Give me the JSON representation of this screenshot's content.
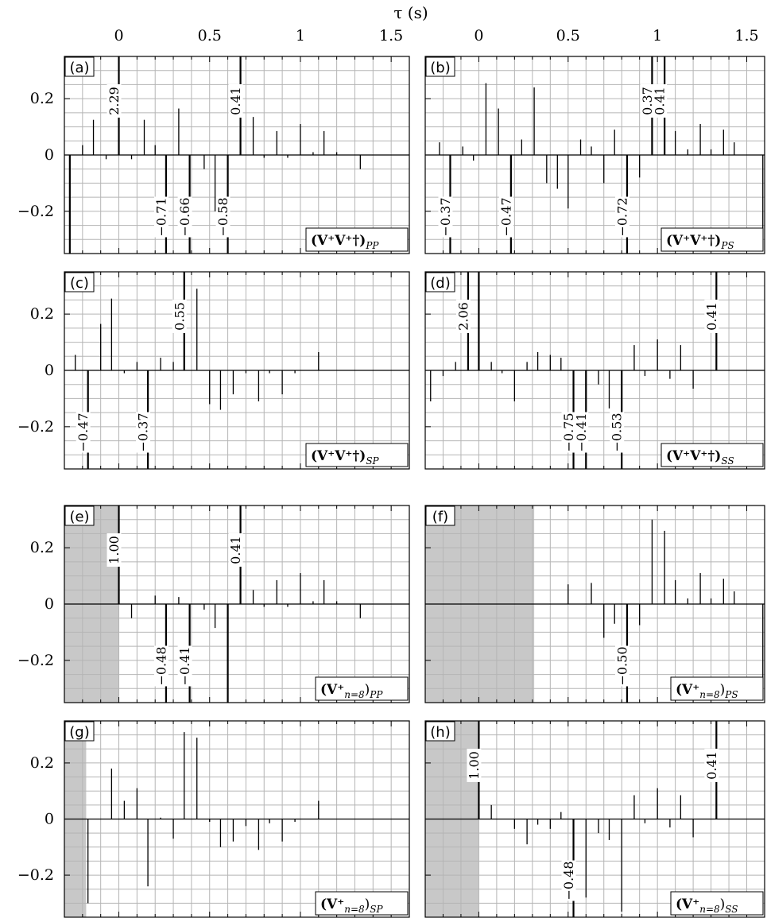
{
  "figure": {
    "xlabel_html": "τ (s)"
  },
  "chart_data": [
    {
      "panel": "(a)",
      "title_main": "(V⁺V⁺†)",
      "title_sub": "PP",
      "type": "bar",
      "xlim": [
        -0.3,
        1.6
      ],
      "ylim": [
        -0.35,
        0.35
      ],
      "xticks": [
        0,
        0.5,
        1,
        1.5
      ],
      "yticks": [
        0.2,
        0,
        -0.2
      ],
      "shade": null,
      "spikes": [
        {
          "x": -0.27,
          "y": -0.35
        },
        {
          "x": -0.2,
          "y": 0.035
        },
        {
          "x": -0.14,
          "y": 0.125
        },
        {
          "x": -0.07,
          "y": -0.015
        },
        {
          "x": 0.0,
          "y": 0.35
        },
        {
          "x": 0.07,
          "y": -0.015
        },
        {
          "x": 0.14,
          "y": 0.125
        },
        {
          "x": 0.2,
          "y": 0.035
        },
        {
          "x": 0.26,
          "y": -0.35
        },
        {
          "x": 0.33,
          "y": 0.165
        },
        {
          "x": 0.39,
          "y": -0.35
        },
        {
          "x": 0.47,
          "y": -0.05
        },
        {
          "x": 0.53,
          "y": -0.2
        },
        {
          "x": 0.6,
          "y": -0.35
        },
        {
          "x": 0.67,
          "y": 0.35
        },
        {
          "x": 0.74,
          "y": 0.135
        },
        {
          "x": 0.8,
          "y": -0.01
        },
        {
          "x": 0.87,
          "y": 0.085
        },
        {
          "x": 0.93,
          "y": -0.01
        },
        {
          "x": 1.0,
          "y": 0.11
        },
        {
          "x": 1.07,
          "y": 0.01
        },
        {
          "x": 1.13,
          "y": 0.085
        },
        {
          "x": 1.2,
          "y": 0.01
        },
        {
          "x": 1.33,
          "y": -0.05
        }
      ],
      "annotations": [
        {
          "text": "2.29",
          "x": 0.0,
          "y": 0.35
        },
        {
          "text": "0.41",
          "x": 0.67,
          "y": 0.35
        },
        {
          "text": "−0.71",
          "x": 0.26,
          "y": -0.35
        },
        {
          "text": "−0.66",
          "x": 0.39,
          "y": -0.35
        },
        {
          "text": "−0.58",
          "x": 0.6,
          "y": -0.35
        }
      ]
    },
    {
      "panel": "(b)",
      "title_main": "(V⁺V⁺†)",
      "title_sub": "PS",
      "type": "bar",
      "xlim": [
        -0.3,
        1.6
      ],
      "ylim": [
        -0.35,
        0.35
      ],
      "xticks": [
        0,
        0.5,
        1,
        1.5
      ],
      "yticks": [
        0.2,
        0,
        -0.2
      ],
      "shade": null,
      "spikes": [
        {
          "x": -0.22,
          "y": 0.045
        },
        {
          "x": -0.16,
          "y": -0.35
        },
        {
          "x": -0.09,
          "y": 0.03
        },
        {
          "x": -0.03,
          "y": -0.02
        },
        {
          "x": 0.04,
          "y": 0.255
        },
        {
          "x": 0.11,
          "y": 0.165
        },
        {
          "x": 0.18,
          "y": -0.35
        },
        {
          "x": 0.24,
          "y": 0.055
        },
        {
          "x": 0.31,
          "y": 0.24
        },
        {
          "x": 0.38,
          "y": -0.1
        },
        {
          "x": 0.44,
          "y": -0.12
        },
        {
          "x": 0.5,
          "y": -0.19
        },
        {
          "x": 0.57,
          "y": 0.055
        },
        {
          "x": 0.63,
          "y": 0.03
        },
        {
          "x": 0.7,
          "y": -0.1
        },
        {
          "x": 0.76,
          "y": 0.09
        },
        {
          "x": 0.83,
          "y": -0.35
        },
        {
          "x": 0.9,
          "y": -0.08
        },
        {
          "x": 0.97,
          "y": 0.35
        },
        {
          "x": 1.04,
          "y": 0.35
        },
        {
          "x": 1.1,
          "y": 0.085
        },
        {
          "x": 1.17,
          "y": 0.02
        },
        {
          "x": 1.24,
          "y": 0.11
        },
        {
          "x": 1.3,
          "y": 0.02
        },
        {
          "x": 1.37,
          "y": 0.09
        },
        {
          "x": 1.43,
          "y": 0.045
        },
        {
          "x": 1.59,
          "y": -0.3
        }
      ],
      "annotations": [
        {
          "text": "−0.37",
          "x": -0.16,
          "y": -0.35
        },
        {
          "text": "−0.47",
          "x": 0.18,
          "y": -0.35
        },
        {
          "text": "−0.72",
          "x": 0.83,
          "y": -0.35
        },
        {
          "text": "0.37",
          "x": 0.97,
          "y": 0.35
        },
        {
          "text": "0.41",
          "x": 1.04,
          "y": 0.35
        }
      ]
    },
    {
      "panel": "(c)",
      "title_main": "(V⁺V⁺†)",
      "title_sub": "SP",
      "type": "bar",
      "xlim": [
        -0.3,
        1.6
      ],
      "ylim": [
        -0.35,
        0.35
      ],
      "xticks": [
        0,
        0.5,
        1,
        1.5
      ],
      "yticks": [
        0.2,
        0,
        -0.2
      ],
      "shade": null,
      "spikes": [
        {
          "x": -0.24,
          "y": 0.055
        },
        {
          "x": -0.17,
          "y": -0.35
        },
        {
          "x": -0.1,
          "y": 0.165
        },
        {
          "x": -0.04,
          "y": 0.255
        },
        {
          "x": 0.03,
          "y": -0.01
        },
        {
          "x": 0.1,
          "y": 0.03
        },
        {
          "x": 0.16,
          "y": -0.35
        },
        {
          "x": 0.23,
          "y": 0.045
        },
        {
          "x": 0.3,
          "y": 0.03
        },
        {
          "x": 0.36,
          "y": 0.35
        },
        {
          "x": 0.43,
          "y": 0.29
        },
        {
          "x": 0.5,
          "y": -0.12
        },
        {
          "x": 0.56,
          "y": -0.14
        },
        {
          "x": 0.63,
          "y": -0.085
        },
        {
          "x": 0.7,
          "y": -0.01
        },
        {
          "x": 0.77,
          "y": -0.11
        },
        {
          "x": 0.83,
          "y": -0.01
        },
        {
          "x": 0.9,
          "y": -0.085
        },
        {
          "x": 0.97,
          "y": -0.01
        },
        {
          "x": 1.1,
          "y": 0.065
        }
      ],
      "annotations": [
        {
          "text": "−0.47",
          "x": -0.17,
          "y": -0.35
        },
        {
          "text": "−0.37",
          "x": 0.16,
          "y": -0.35
        },
        {
          "text": "0.55",
          "x": 0.36,
          "y": 0.35
        }
      ]
    },
    {
      "panel": "(d)",
      "title_main": "(V⁺V⁺†)",
      "title_sub": "SS",
      "type": "bar",
      "xlim": [
        -0.3,
        1.6
      ],
      "ylim": [
        -0.35,
        0.35
      ],
      "xticks": [
        0,
        0.5,
        1,
        1.5
      ],
      "yticks": [
        0.2,
        0,
        -0.2
      ],
      "shade": null,
      "spikes": [
        {
          "x": -0.27,
          "y": -0.11
        },
        {
          "x": -0.2,
          "y": -0.02
        },
        {
          "x": -0.13,
          "y": 0.03
        },
        {
          "x": -0.06,
          "y": 0.35
        },
        {
          "x": 0.0,
          "y": 0.35
        },
        {
          "x": 0.07,
          "y": 0.03
        },
        {
          "x": 0.13,
          "y": -0.01
        },
        {
          "x": 0.2,
          "y": -0.11
        },
        {
          "x": 0.27,
          "y": 0.03
        },
        {
          "x": 0.33,
          "y": 0.065
        },
        {
          "x": 0.4,
          "y": 0.055
        },
        {
          "x": 0.46,
          "y": 0.045
        },
        {
          "x": 0.53,
          "y": -0.35
        },
        {
          "x": 0.6,
          "y": -0.35
        },
        {
          "x": 0.67,
          "y": -0.05
        },
        {
          "x": 0.73,
          "y": -0.135
        },
        {
          "x": 0.8,
          "y": -0.35
        },
        {
          "x": 0.87,
          "y": 0.09
        },
        {
          "x": 0.93,
          "y": -0.02
        },
        {
          "x": 1.0,
          "y": 0.11
        },
        {
          "x": 1.07,
          "y": -0.03
        },
        {
          "x": 1.13,
          "y": 0.09
        },
        {
          "x": 1.2,
          "y": -0.065
        },
        {
          "x": 1.33,
          "y": 0.35
        }
      ],
      "annotations": [
        {
          "text": "2.06",
          "x": -0.06,
          "y": 0.35
        },
        {
          "text": "−0.75",
          "x": 0.53,
          "y": -0.35
        },
        {
          "text": "−0.41",
          "x": 0.6,
          "y": -0.35
        },
        {
          "text": "−0.53",
          "x": 0.8,
          "y": -0.35
        },
        {
          "text": "0.41",
          "x": 1.33,
          "y": 0.35
        }
      ]
    },
    {
      "panel": "(e)",
      "title_main": "(V⁺",
      "title_index": "n=8",
      "title_sub": "PP",
      "type": "bar",
      "xlim": [
        -0.3,
        1.6
      ],
      "ylim": [
        -0.35,
        0.35
      ],
      "xticks": [
        0,
        0.5,
        1,
        1.5
      ],
      "yticks": [
        0.2,
        0,
        -0.2
      ],
      "shade": [
        -0.3,
        0.0
      ],
      "spikes": [
        {
          "x": 0.0,
          "y": 0.35
        },
        {
          "x": 0.07,
          "y": -0.05
        },
        {
          "x": 0.2,
          "y": 0.03
        },
        {
          "x": 0.26,
          "y": -0.35
        },
        {
          "x": 0.33,
          "y": 0.025
        },
        {
          "x": 0.39,
          "y": -0.35
        },
        {
          "x": 0.47,
          "y": -0.02
        },
        {
          "x": 0.53,
          "y": -0.085
        },
        {
          "x": 0.6,
          "y": -0.35
        },
        {
          "x": 0.67,
          "y": 0.35
        },
        {
          "x": 0.74,
          "y": 0.05
        },
        {
          "x": 0.8,
          "y": -0.01
        },
        {
          "x": 0.87,
          "y": 0.085
        },
        {
          "x": 0.93,
          "y": -0.01
        },
        {
          "x": 1.0,
          "y": 0.11
        },
        {
          "x": 1.07,
          "y": 0.01
        },
        {
          "x": 1.13,
          "y": 0.085
        },
        {
          "x": 1.2,
          "y": 0.01
        },
        {
          "x": 1.33,
          "y": -0.05
        }
      ],
      "annotations": [
        {
          "text": "1.00",
          "x": 0.0,
          "y": 0.35
        },
        {
          "text": "0.41",
          "x": 0.67,
          "y": 0.35
        },
        {
          "text": "−0.48",
          "x": 0.26,
          "y": -0.35
        },
        {
          "text": "−0.41",
          "x": 0.39,
          "y": -0.35
        }
      ]
    },
    {
      "panel": "(f)",
      "title_main": "(V⁺",
      "title_index": "n=8",
      "title_sub": "PS",
      "type": "bar",
      "xlim": [
        -0.3,
        1.6
      ],
      "ylim": [
        -0.35,
        0.35
      ],
      "xticks": [
        0,
        0.5,
        1,
        1.5
      ],
      "yticks": [
        0.2,
        0,
        -0.2
      ],
      "shade": [
        -0.3,
        0.31
      ],
      "spikes": [
        {
          "x": 0.5,
          "y": 0.07
        },
        {
          "x": 0.63,
          "y": 0.075
        },
        {
          "x": 0.7,
          "y": -0.12
        },
        {
          "x": 0.76,
          "y": -0.07
        },
        {
          "x": 0.83,
          "y": -0.35
        },
        {
          "x": 0.9,
          "y": -0.075
        },
        {
          "x": 0.97,
          "y": 0.3
        },
        {
          "x": 1.04,
          "y": 0.26
        },
        {
          "x": 1.1,
          "y": 0.085
        },
        {
          "x": 1.17,
          "y": 0.02
        },
        {
          "x": 1.24,
          "y": 0.11
        },
        {
          "x": 1.3,
          "y": 0.02
        },
        {
          "x": 1.37,
          "y": 0.09
        },
        {
          "x": 1.43,
          "y": 0.045
        },
        {
          "x": 1.59,
          "y": -0.3
        }
      ],
      "annotations": [
        {
          "text": "−0.50",
          "x": 0.83,
          "y": -0.35
        }
      ]
    },
    {
      "panel": "(g)",
      "title_main": "(V⁺",
      "title_index": "n=8",
      "title_sub": "SP",
      "type": "bar",
      "xlim": [
        -0.3,
        1.6
      ],
      "ylim": [
        -0.35,
        0.35
      ],
      "xticks": [
        0,
        0.5,
        1,
        1.5
      ],
      "yticks": [
        0.2,
        0,
        -0.2
      ],
      "shade": [
        -0.3,
        -0.18
      ],
      "spikes": [
        {
          "x": -0.17,
          "y": -0.3
        },
        {
          "x": -0.04,
          "y": 0.18
        },
        {
          "x": 0.03,
          "y": 0.065
        },
        {
          "x": 0.1,
          "y": 0.11
        },
        {
          "x": 0.16,
          "y": -0.24
        },
        {
          "x": 0.23,
          "y": 0.005
        },
        {
          "x": 0.3,
          "y": -0.07
        },
        {
          "x": 0.36,
          "y": 0.31
        },
        {
          "x": 0.43,
          "y": 0.29
        },
        {
          "x": 0.5,
          "y": -0.01
        },
        {
          "x": 0.56,
          "y": -0.1
        },
        {
          "x": 0.63,
          "y": -0.08
        },
        {
          "x": 0.7,
          "y": -0.025
        },
        {
          "x": 0.77,
          "y": -0.11
        },
        {
          "x": 0.83,
          "y": -0.015
        },
        {
          "x": 0.9,
          "y": -0.08
        },
        {
          "x": 0.97,
          "y": -0.01
        },
        {
          "x": 1.1,
          "y": 0.065
        }
      ],
      "annotations": []
    },
    {
      "panel": "(h)",
      "title_main": "(V⁺",
      "title_index": "n=8",
      "title_sub": "SS",
      "type": "bar",
      "xlim": [
        -0.3,
        1.6
      ],
      "ylim": [
        -0.35,
        0.35
      ],
      "xticks": [
        0,
        0.5,
        1,
        1.5
      ],
      "yticks": [
        0.2,
        0,
        -0.2
      ],
      "shade": [
        -0.3,
        0.0
      ],
      "spikes": [
        {
          "x": 0.0,
          "y": 0.35
        },
        {
          "x": 0.07,
          "y": 0.05
        },
        {
          "x": 0.2,
          "y": -0.035
        },
        {
          "x": 0.27,
          "y": -0.09
        },
        {
          "x": 0.33,
          "y": -0.02
        },
        {
          "x": 0.4,
          "y": -0.035
        },
        {
          "x": 0.46,
          "y": 0.025
        },
        {
          "x": 0.53,
          "y": -0.35
        },
        {
          "x": 0.6,
          "y": -0.28
        },
        {
          "x": 0.67,
          "y": -0.05
        },
        {
          "x": 0.73,
          "y": -0.075
        },
        {
          "x": 0.8,
          "y": -0.33
        },
        {
          "x": 0.87,
          "y": 0.085
        },
        {
          "x": 0.93,
          "y": -0.015
        },
        {
          "x": 1.0,
          "y": 0.11
        },
        {
          "x": 1.07,
          "y": -0.03
        },
        {
          "x": 1.13,
          "y": 0.085
        },
        {
          "x": 1.2,
          "y": -0.065
        },
        {
          "x": 1.33,
          "y": 0.35
        }
      ],
      "annotations": [
        {
          "text": "1.00",
          "x": 0.0,
          "y": 0.35
        },
        {
          "text": "−0.48",
          "x": 0.53,
          "y": -0.35
        },
        {
          "text": "0.41",
          "x": 1.33,
          "y": 0.35
        }
      ]
    }
  ]
}
